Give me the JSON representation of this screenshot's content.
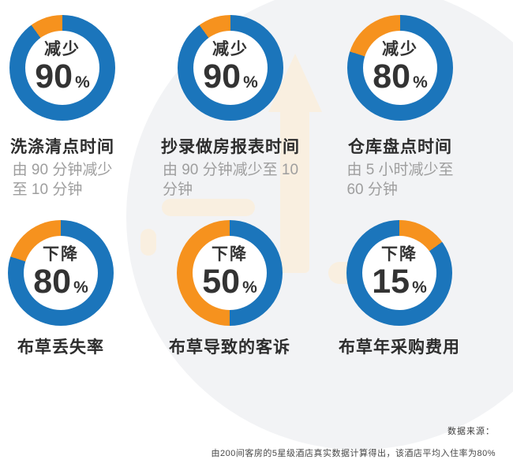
{
  "colors": {
    "ring_blue": "#1b75bb",
    "segment_orange": "#f6921e",
    "text_dark": "#333333",
    "title_dark": "#2d2d2d",
    "subtitle_gray": "#9e9e9e",
    "background_circle": "#f2f3f5",
    "watermark_tan": "#f9efe0"
  },
  "chart_data": [
    {
      "type": "donut",
      "action_label": "减少",
      "value": 90,
      "unit": "%",
      "title": "洗涤清点时间",
      "subtitle": [
        "由 90 分钟减少",
        "至 10 分钟"
      ],
      "ring_color": "#1b75bb",
      "remainder_color": "#f6921e",
      "remainder_percent": 10,
      "remainder_arc_deg": [
        324,
        360
      ]
    },
    {
      "type": "donut",
      "action_label": "减少",
      "value": 90,
      "unit": "%",
      "title": "抄录做房报表时间",
      "subtitle": [
        "由 90 分钟减少至 10",
        "分钟"
      ],
      "ring_color": "#1b75bb",
      "remainder_color": "#f6921e",
      "remainder_percent": 10,
      "remainder_arc_deg": [
        324,
        360
      ]
    },
    {
      "type": "donut",
      "action_label": "减少",
      "value": 80,
      "unit": "%",
      "title": "仓库盘点时间",
      "subtitle": [
        "由 5 小时减少至",
        "60 分钟"
      ],
      "ring_color": "#1b75bb",
      "remainder_color": "#f6921e",
      "remainder_percent": 20,
      "remainder_arc_deg": [
        288,
        360
      ]
    },
    {
      "type": "donut",
      "action_label": "下降",
      "value": 80,
      "unit": "%",
      "title": "布草丢失率",
      "subtitle": [],
      "ring_color": "#1b75bb",
      "remainder_color": "#f6921e",
      "remainder_percent": 20,
      "remainder_arc_deg": [
        288,
        360
      ]
    },
    {
      "type": "donut",
      "action_label": "下降",
      "value": 50,
      "unit": "%",
      "title": "布草导致的客诉",
      "subtitle": [],
      "ring_color": "#1b75bb",
      "remainder_color": "#f6921e",
      "remainder_percent": 50,
      "remainder_arc_deg": [
        180,
        360
      ]
    },
    {
      "type": "donut",
      "action_label": "下降",
      "value": 15,
      "unit": "%",
      "title": "布草年采购费用",
      "subtitle": [],
      "ring_color": "#1b75bb",
      "remainder_color": "#f6921e",
      "remainder_percent": 15,
      "remainder_arc_deg": [
        0,
        54
      ]
    }
  ],
  "source": {
    "label": "数据来源：",
    "footnote": "由200间客房的5星级酒店真实数据计算得出，该酒店平均入住率为80%"
  }
}
